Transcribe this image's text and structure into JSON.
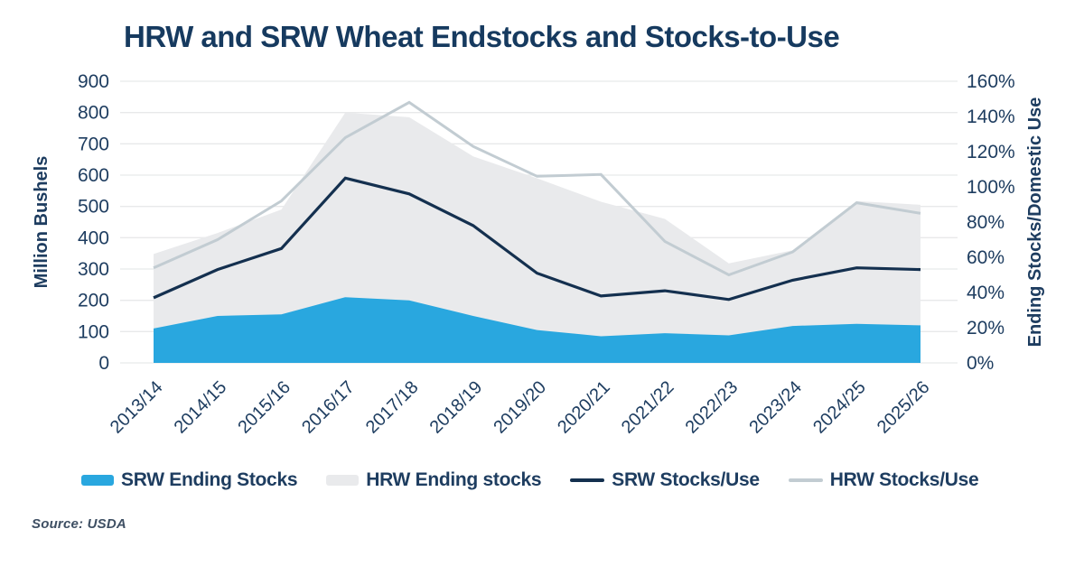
{
  "page": {
    "title": "HRW and SRW Wheat Endstocks and Stocks-to-Use",
    "source_note": "Source: USDA"
  },
  "colors": {
    "title_text": "#163a5f",
    "axis_text": "#1e3d60",
    "gridline": "#e8e9ea",
    "srw_area": "#29a7df",
    "hrw_area": "#e9eaec",
    "srw_line": "#14304f",
    "hrw_line": "#c2ccd2"
  },
  "chart_data": {
    "type": "area",
    "title": "HRW and SRW Wheat Endstocks and Stocks-to-Use",
    "categories": [
      "2013/14",
      "2014/15",
      "2015/16",
      "2016/17",
      "2017/18",
      "2018/19",
      "2019/20",
      "2020/21",
      "2021/22",
      "2022/23",
      "2023/24",
      "2024/25",
      "2025/26"
    ],
    "series": [
      {
        "name": "SRW Ending Stocks",
        "type": "stacked-area",
        "axis": "left",
        "color": "#29a7df",
        "values": [
          110,
          150,
          155,
          210,
          200,
          150,
          105,
          85,
          95,
          88,
          118,
          125,
          120
        ]
      },
      {
        "name": "HRW Ending stocks",
        "type": "stacked-area",
        "axis": "left",
        "color": "#e9eaec",
        "values": [
          238,
          265,
          335,
          590,
          585,
          510,
          485,
          430,
          365,
          230,
          242,
          392,
          385
        ]
      },
      {
        "name": "SRW Stocks/Use",
        "type": "line",
        "axis": "right",
        "color": "#14304f",
        "values": [
          37,
          53,
          65,
          105,
          96,
          78,
          51,
          38,
          41,
          36,
          47,
          54,
          53
        ]
      },
      {
        "name": "HRW Stocks/Use",
        "type": "line",
        "axis": "right",
        "color": "#c2ccd2",
        "values": [
          54,
          70,
          92,
          128,
          148,
          123,
          106,
          107,
          69,
          50,
          63,
          91,
          85
        ]
      }
    ],
    "left_axis": {
      "label": "Million Bushels",
      "min": 0,
      "max": 900,
      "step": 100,
      "tick_labels": [
        "0",
        "100",
        "200",
        "300",
        "400",
        "500",
        "600",
        "700",
        "800",
        "900"
      ]
    },
    "right_axis": {
      "label": "Ending Stocks/Domestic Use",
      "min": 0,
      "max": 160,
      "step": 20,
      "unit": "%",
      "tick_labels": [
        "0%",
        "20%",
        "40%",
        "60%",
        "80%",
        "100%",
        "120%",
        "140%",
        "160%"
      ]
    },
    "grid": true,
    "legend_position": "bottom"
  },
  "legend": {
    "items": [
      {
        "label": "SRW Ending Stocks",
        "swatch": "area",
        "color": "#29a7df"
      },
      {
        "label": "HRW Ending stocks",
        "swatch": "area",
        "color": "#e9eaec"
      },
      {
        "label": "SRW Stocks/Use",
        "swatch": "line",
        "color": "#14304f"
      },
      {
        "label": "HRW Stocks/Use",
        "swatch": "line",
        "color": "#c2ccd2"
      }
    ]
  }
}
